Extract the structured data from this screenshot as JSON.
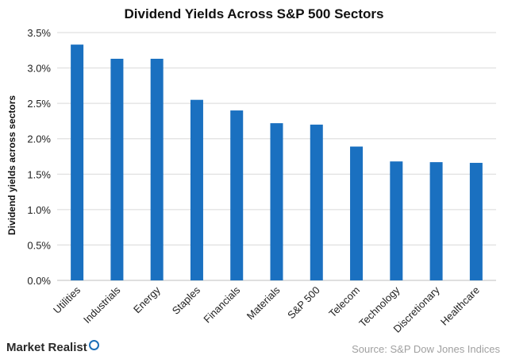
{
  "chart_data": {
    "type": "bar",
    "title": "Dividend Yields Across S&P 500 Sectors",
    "ylabel": "Dividend yields across sectors",
    "xlabel": "",
    "categories": [
      "Utilities",
      "Industrials",
      "Energy",
      "Staples",
      "Financials",
      "Materials",
      "S&P 500",
      "Telecom",
      "Technology",
      "Discretionary",
      "Healthcare"
    ],
    "values": [
      3.33,
      3.13,
      3.13,
      2.55,
      2.4,
      2.22,
      2.2,
      1.89,
      1.68,
      1.67,
      1.66
    ],
    "ylim": [
      0,
      3.5
    ],
    "yticks": [
      "0.0%",
      "0.5%",
      "1.0%",
      "1.5%",
      "2.0%",
      "2.5%",
      "3.0%",
      "3.5%"
    ],
    "bar_color": "#1a70c0",
    "grid": true,
    "legend": "none"
  },
  "footer": {
    "brand": "Market Realist",
    "source": "Source: S&P Dow Jones Indices"
  }
}
